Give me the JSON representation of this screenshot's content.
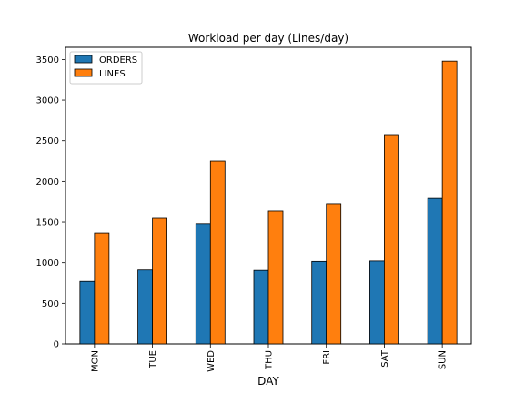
{
  "chart_data": {
    "type": "bar",
    "title": "Workload per day (Lines/day)",
    "xlabel": "DAY",
    "ylabel": "",
    "categories": [
      "MON",
      "TUE",
      "WED",
      "THU",
      "FRI",
      "SAT",
      "SUN"
    ],
    "series": [
      {
        "name": "ORDERS",
        "color": "#1f77b4",
        "values": [
          770,
          910,
          1480,
          905,
          1015,
          1020,
          1790
        ]
      },
      {
        "name": "LINES",
        "color": "#ff7f0e",
        "values": [
          1365,
          1545,
          2250,
          1635,
          1725,
          2575,
          3480
        ]
      }
    ],
    "ylim": [
      0,
      3650
    ],
    "yticks": [
      0,
      500,
      1000,
      1500,
      2000,
      2500,
      3000,
      3500
    ],
    "grid": false,
    "legend_position": "top-left"
  }
}
